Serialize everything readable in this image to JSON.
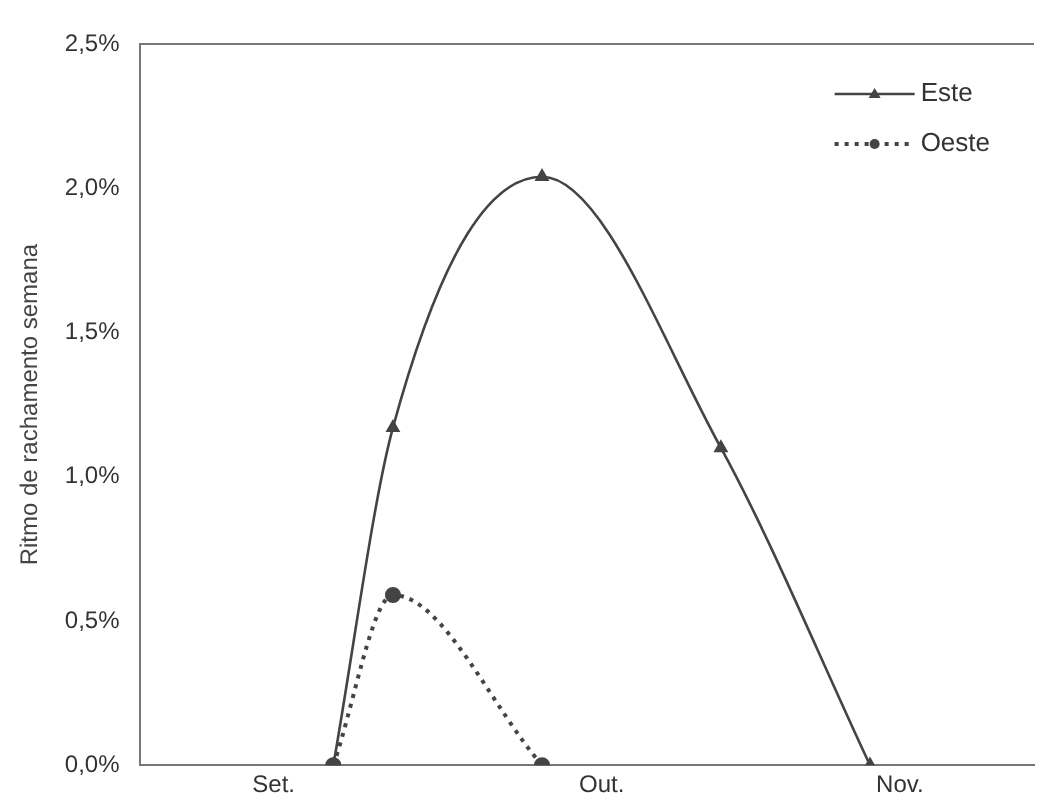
{
  "chart_data": {
    "type": "line",
    "ylabel": "Ritmo de rachamento semana",
    "categories": [
      null,
      null,
      null,
      null,
      "Set.",
      null,
      null,
      null,
      null,
      null,
      null,
      null,
      null,
      null,
      null,
      "Out.",
      null,
      null,
      null,
      null,
      null,
      null,
      null,
      null,
      null,
      "Nov.",
      null,
      null,
      null,
      null
    ],
    "ylim": [
      0,
      2.5
    ],
    "yticks": [
      {
        "value": 0,
        "label": "0,0%"
      },
      {
        "value": 0.5,
        "label": "0,5%"
      },
      {
        "value": 1,
        "label": "1,0%"
      },
      {
        "value": 1.5,
        "label": "1,5%"
      },
      {
        "value": 2,
        "label": "2,0%"
      },
      {
        "value": 2.5,
        "label": "2,5%"
      }
    ],
    "grid": false,
    "legend": "top right",
    "series": [
      {
        "name": "Este",
        "color": "#444444",
        "marker": "triangle",
        "line_style": "solid",
        "values": [
          null,
          null,
          null,
          null,
          null,
          null,
          0,
          null,
          1.17,
          null,
          null,
          null,
          null,
          2.04,
          null,
          null,
          null,
          null,
          null,
          1.1,
          null,
          null,
          null,
          null,
          0,
          null,
          null,
          null,
          null,
          null
        ]
      },
      {
        "name": "Oeste",
        "color": "#444444",
        "marker": "circle",
        "line_style": "dotted",
        "values": [
          null,
          null,
          null,
          null,
          null,
          null,
          0,
          null,
          0.59,
          null,
          null,
          null,
          null,
          0,
          null,
          null,
          null,
          null,
          null,
          null,
          null,
          null,
          null,
          null,
          null,
          null,
          null,
          null,
          null,
          null
        ]
      }
    ]
  }
}
